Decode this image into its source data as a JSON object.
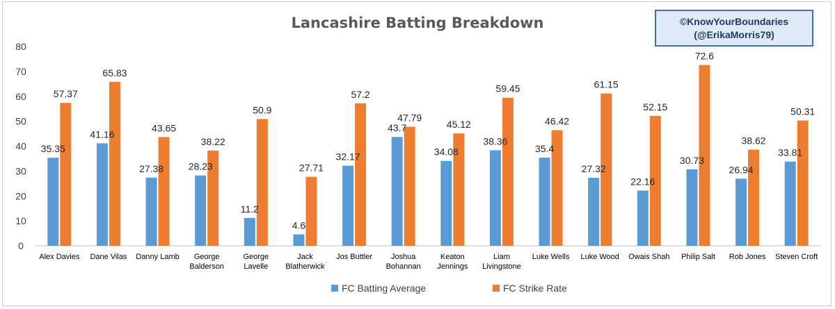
{
  "credit": {
    "line1": "©KnowYourBoundaries",
    "line2": "(@ErikaMorris79)"
  },
  "chart_data": {
    "type": "bar",
    "title": "Lancashire Batting Breakdown",
    "xlabel": "",
    "ylabel": "",
    "ylim": [
      0,
      80
    ],
    "yticks": [
      0,
      10,
      20,
      30,
      40,
      50,
      60,
      70,
      80
    ],
    "grid": false,
    "legend_position": "bottom",
    "categories": [
      [
        "Alex Davies"
      ],
      [
        "Dane Vilas"
      ],
      [
        "Danny Lamb"
      ],
      [
        "George",
        "Balderson"
      ],
      [
        "George",
        "Lavelle"
      ],
      [
        "Jack",
        "Blatherwick"
      ],
      [
        "Jos Buttler"
      ],
      [
        "Joshua",
        "Bohannan"
      ],
      [
        "Keaton",
        "Jennings"
      ],
      [
        "Liam",
        "Livingstone"
      ],
      [
        "Luke Wells"
      ],
      [
        "Luke Wood"
      ],
      [
        "Owais Shah"
      ],
      [
        "Philip Salt"
      ],
      [
        "Rob Jones"
      ],
      [
        "Steven Croft"
      ]
    ],
    "series": [
      {
        "name": "FC Batting Average",
        "color": "#5b9bd5",
        "values": [
          35.35,
          41.16,
          27.38,
          28.23,
          11.2,
          4.6,
          32.17,
          43.7,
          34.08,
          38.36,
          35.4,
          27.32,
          22.16,
          30.73,
          26.94,
          33.81
        ]
      },
      {
        "name": "FC Strike Rate",
        "color": "#ed7d31",
        "values": [
          57.37,
          65.83,
          43.65,
          38.22,
          50.9,
          27.71,
          57.2,
          47.79,
          45.12,
          59.45,
          46.42,
          61.15,
          52.15,
          72.6,
          38.62,
          50.31
        ]
      }
    ]
  }
}
